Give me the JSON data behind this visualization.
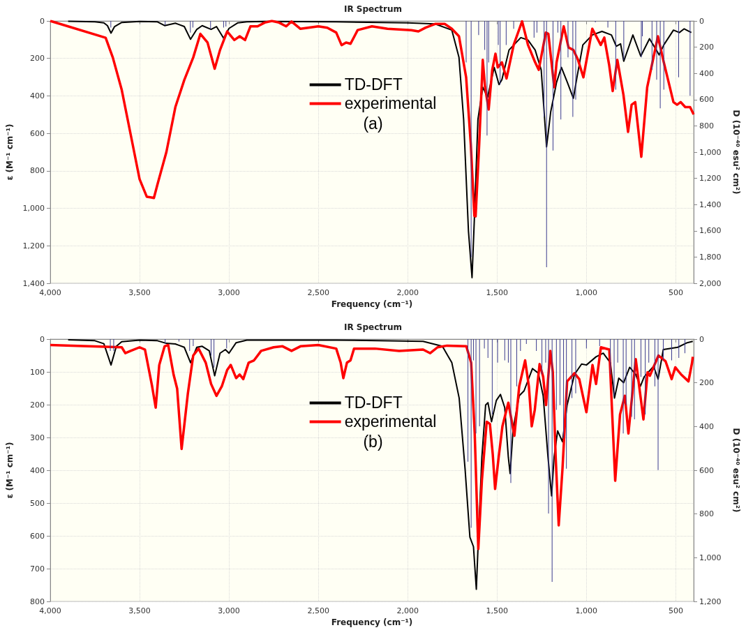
{
  "chart_data": [
    {
      "type": "line",
      "title": "IR Spectrum",
      "xlabel": "Frequency (cm⁻¹)",
      "ylabel": "ε (M⁻¹ cm⁻¹)",
      "y2label": "D (10⁻⁴⁰ esu² cm²)",
      "xlim": [
        4000,
        400
      ],
      "xticks": [
        {
          "value": 4000,
          "label": "4,000"
        },
        {
          "value": 3500,
          "label": "3,500"
        },
        {
          "value": 3000,
          "label": "3,000"
        },
        {
          "value": 2500,
          "label": "2,500"
        },
        {
          "value": 2000,
          "label": "2,000"
        },
        {
          "value": 1500,
          "label": "1,500"
        },
        {
          "value": 1000,
          "label": "1,000"
        },
        500
      ],
      "ylim": [
        1400,
        0
      ],
      "yticks": [
        0,
        200,
        400,
        600,
        800,
        {
          "value": 1000,
          "label": "1,000"
        },
        {
          "value": 1200,
          "label": "1,200"
        },
        {
          "value": 1400,
          "label": "1,400"
        }
      ],
      "y2lim": [
        2000,
        0
      ],
      "y2ticks": [
        0,
        200,
        400,
        600,
        800,
        {
          "value": 1000,
          "label": "1,000"
        },
        {
          "value": 1200,
          "label": "1,200"
        },
        {
          "value": 1400,
          "label": "1,400"
        },
        {
          "value": 1600,
          "label": "1,600"
        },
        {
          "value": 1800,
          "label": "1,800"
        },
        {
          "value": 2000,
          "label": "2,000"
        }
      ],
      "grid": true,
      "legend": "top",
      "marker": "none",
      "annotations": [
        "(a)"
      ],
      "series": [
        {
          "name": "TD-DFT",
          "color": "#000000",
          "x": [
            3900,
            3750,
            3700,
            3680,
            3660,
            3640,
            3600,
            3500,
            3400,
            3360,
            3300,
            3250,
            3215,
            3180,
            3150,
            3100,
            3070,
            3030,
            3000,
            2950,
            2900,
            2800,
            2400,
            2000,
            1847,
            1753,
            1713,
            1687,
            1660,
            1640,
            1627,
            1607,
            1580,
            1553,
            1516,
            1489,
            1473,
            1433,
            1367,
            1327,
            1287,
            1253,
            1223,
            1200,
            1167,
            1140,
            1107,
            1073,
            1053,
            1020,
            967,
            913,
            860,
            833,
            809,
            791,
            740,
            696,
            647,
            593,
            567,
            513,
            480,
            453,
            413
          ],
          "values": [
            2,
            5,
            10,
            25,
            65,
            30,
            8,
            3,
            5,
            25,
            12,
            30,
            98,
            45,
            25,
            45,
            30,
            92,
            40,
            10,
            5,
            3,
            5,
            10,
            16,
            49,
            195,
            526,
            1122,
            1370,
            1056,
            526,
            354,
            407,
            248,
            340,
            314,
            155,
            89,
            102,
            155,
            261,
            672,
            486,
            327,
            248,
            327,
            413,
            301,
            128,
            75,
            56,
            75,
            135,
            122,
            215,
            75,
            188,
            95,
            181,
            128,
            49,
            62,
            42,
            62
          ]
        },
        {
          "name": "experimental",
          "color": "#ff0000",
          "x": [
            4000,
            3690,
            3650,
            3600,
            3550,
            3500,
            3460,
            3440,
            3420,
            3400,
            3350,
            3300,
            3250,
            3200,
            3160,
            3120,
            3080,
            3050,
            3010,
            2970,
            2940,
            2910,
            2880,
            2840,
            2800,
            2760,
            2720,
            2680,
            2650,
            2600,
            2500,
            2450,
            2400,
            2370,
            2345,
            2320,
            2280,
            2200,
            2113,
            1980,
            1940,
            1900,
            1847,
            1793,
            1753,
            1713,
            1673,
            1647,
            1627,
            1620,
            1600,
            1580,
            1567,
            1547,
            1527,
            1509,
            1496,
            1473,
            1447,
            1407,
            1360,
            1327,
            1287,
            1267,
            1227,
            1213,
            1180,
            1167,
            1127,
            1100,
            1073,
            1047,
            1017,
            967,
            920,
            900,
            873,
            853,
            827,
            793,
            767,
            747,
            727,
            693,
            660,
            600,
            567,
            513,
            493,
            473,
            447,
            420,
            400
          ],
          "values": [
            0,
            90,
            195,
            368,
            606,
            845,
            938,
            941,
            945,
            872,
            699,
            460,
            315,
            195,
            69,
            115,
            255,
            155,
            56,
            102,
            82,
            102,
            29,
            29,
            9,
            0,
            9,
            29,
            3,
            42,
            29,
            36,
            62,
            129,
            115,
            122,
            49,
            29,
            42,
            49,
            56,
            36,
            16,
            16,
            42,
            82,
            301,
            658,
            1040,
            1043,
            658,
            208,
            354,
            473,
            261,
            175,
            248,
            221,
            307,
            128,
            2,
            128,
            221,
            261,
            62,
            69,
            354,
            221,
            29,
            142,
            155,
            208,
            301,
            42,
            128,
            89,
            234,
            374,
            208,
            394,
            592,
            447,
            433,
            725,
            354,
            82,
            221,
            433,
            447,
            433,
            460,
            460,
            499
          ]
        },
        {
          "type": "bar",
          "axis": "y2",
          "color": "#3b3b8f",
          "x": [
            3661,
            3357,
            3216,
            3202,
            3103,
            3030,
            3017,
            1673,
            1645,
            1603,
            1569,
            1556,
            1547,
            1493,
            1483,
            1449,
            1407,
            1293,
            1277,
            1237,
            1223,
            1187,
            1160,
            1143,
            1103,
            1076,
            1060,
            950,
            880,
            836,
            791,
            693,
            687,
            633,
            607,
            587,
            567,
            484,
            420
          ],
          "values": [
            51,
            32,
            89,
            51,
            61,
            51,
            42,
            316,
            1800,
            108,
            221,
            874,
            316,
            183,
            486,
            183,
            60,
            127,
            89,
            732,
            1877,
            988,
            89,
            751,
            278,
            732,
            600,
            10,
            50,
            524,
            297,
            278,
            117,
            373,
            448,
            666,
            524,
            430,
            571
          ]
        }
      ]
    },
    {
      "type": "line",
      "title": "IR Spectrum",
      "xlabel": "Frequency (cm⁻¹)",
      "ylabel": "ε (M⁻¹ cm⁻¹)",
      "y2label": "D (10⁻⁴⁰ esu² cm²)",
      "xlim": [
        4000,
        400
      ],
      "xticks": [
        {
          "value": 4000,
          "label": "4,000"
        },
        {
          "value": 3500,
          "label": "3,500"
        },
        {
          "value": 3000,
          "label": "3,000"
        },
        {
          "value": 2500,
          "label": "2,500"
        },
        {
          "value": 2000,
          "label": "2,000"
        },
        {
          "value": 1500,
          "label": "1,500"
        },
        {
          "value": 1000,
          "label": "1,000"
        },
        500
      ],
      "ylim": [
        800,
        0
      ],
      "yticks": [
        0,
        100,
        200,
        300,
        400,
        500,
        600,
        700,
        800
      ],
      "y2lim": [
        1200,
        0
      ],
      "y2ticks": [
        0,
        200,
        400,
        600,
        800,
        {
          "value": 1000,
          "label": "1,000"
        },
        {
          "value": 1200,
          "label": "1,200"
        }
      ],
      "grid": true,
      "legend": "top",
      "marker": "none",
      "annotations": [
        "(b)"
      ],
      "series": [
        {
          "name": "TD-DFT",
          "color": "#000000",
          "x": [
            3900,
            3750,
            3700,
            3660,
            3630,
            3600,
            3500,
            3400,
            3350,
            3300,
            3250,
            3215,
            3180,
            3150,
            3110,
            3080,
            3050,
            3020,
            3000,
            2960,
            2900,
            2400,
            1914,
            1806,
            1753,
            1712,
            1679,
            1652,
            1632,
            1616,
            1602,
            1585,
            1564,
            1551,
            1531,
            1504,
            1481,
            1457,
            1437,
            1427,
            1410,
            1376,
            1349,
            1302,
            1269,
            1242,
            1215,
            1195,
            1181,
            1161,
            1134,
            1108,
            1067,
            1027,
            1000,
            946,
            906,
            866,
            843,
            819,
            792,
            758,
            724,
            698,
            677,
            624,
            599,
            570,
            489,
            436,
            405
          ],
          "values": [
            2,
            5,
            14,
            79,
            22,
            8,
            3,
            5,
            13,
            15,
            25,
            72,
            25,
            22,
            36,
            112,
            43,
            32,
            43,
            11,
            3,
            3,
            7,
            22,
            72,
            180,
            396,
            604,
            633,
            763,
            575,
            360,
            201,
            194,
            252,
            187,
            169,
            209,
            360,
            410,
            273,
            173,
            158,
            90,
            104,
            173,
            360,
            478,
            360,
            280,
            313,
            201,
            108,
            76,
            79,
            54,
            43,
            72,
            180,
            119,
            133,
            86,
            108,
            144,
            115,
            83,
            122,
            32,
            25,
            11,
            7
          ]
        },
        {
          "name": "experimental",
          "color": "#ff0000",
          "x": [
            4000,
            3600,
            3580,
            3550,
            3500,
            3470,
            3430,
            3410,
            3390,
            3360,
            3340,
            3310,
            3290,
            3265,
            3230,
            3200,
            3170,
            3130,
            3100,
            3070,
            3040,
            3010,
            2990,
            2960,
            2940,
            2920,
            2890,
            2860,
            2820,
            2750,
            2700,
            2650,
            2600,
            2500,
            2400,
            2375,
            2360,
            2340,
            2320,
            2300,
            2183,
            2048,
            1914,
            1874,
            1833,
            1780,
            1672,
            1645,
            1625,
            1605,
            1585,
            1558,
            1540,
            1524,
            1511,
            1491,
            1470,
            1437,
            1403,
            1376,
            1343,
            1322,
            1306,
            1289,
            1262,
            1242,
            1226,
            1202,
            1188,
            1172,
            1155,
            1134,
            1108,
            1067,
            1040,
            1000,
            966,
            946,
            919,
            872,
            839,
            812,
            785,
            765,
            724,
            698,
            681,
            658,
            645,
            597,
            557,
            523,
            503,
            470,
            429,
            409,
            405
          ],
          "values": [
            18,
            25,
            43,
            36,
            25,
            32,
            144,
            209,
            79,
            22,
            18,
            108,
            151,
            335,
            166,
            50,
            29,
            72,
            137,
            173,
            144,
            94,
            79,
            119,
            108,
            122,
            72,
            65,
            36,
            25,
            22,
            36,
            22,
            18,
            29,
            72,
            119,
            72,
            65,
            29,
            29,
            36,
            32,
            43,
            25,
            20,
            22,
            72,
            288,
            640,
            432,
            252,
            259,
            352,
            457,
            360,
            266,
            194,
            295,
            144,
            65,
            144,
            266,
            216,
            76,
            115,
            201,
            36,
            101,
            360,
            568,
            396,
            129,
            104,
            122,
            223,
            79,
            137,
            25,
            32,
            432,
            230,
            173,
            288,
            61,
            173,
            245,
            101,
            112,
            50,
            68,
            122,
            86,
            108,
            129,
            72,
            54
          ]
        },
        {
          "type": "bar",
          "axis": "y2",
          "color": "#3b3b8f",
          "x": [
            3664,
            3645,
            3357,
            3280,
            3220,
            3200,
            3100,
            3084,
            3013,
            1663,
            1645,
            1632,
            1618,
            1598,
            1571,
            1551,
            1527,
            1497,
            1457,
            1437,
            1423,
            1390,
            1369,
            1336,
            1280,
            1249,
            1228,
            1212,
            1192,
            1168,
            1148,
            1128,
            1112,
            1081,
            1060,
            1000,
            926,
            866,
            845,
            825,
            794,
            778,
            747,
            731,
            695,
            671,
            651,
            617,
            599,
            570,
            523,
            483,
            449
          ],
          "values": [
            54,
            54,
            22,
            11,
            54,
            32,
            76,
            130,
            43,
            561,
            863,
            97,
            432,
            399,
            43,
            86,
            345,
            108,
            97,
            108,
            658,
            216,
            54,
            22,
            54,
            162,
            108,
            798,
            1111,
            324,
            302,
            453,
            593,
            270,
            248,
            43,
            32,
            162,
            259,
            108,
            432,
            302,
            356,
            367,
            173,
            345,
            108,
            216,
            599,
            97,
            97,
            86,
            65
          ]
        }
      ]
    }
  ]
}
